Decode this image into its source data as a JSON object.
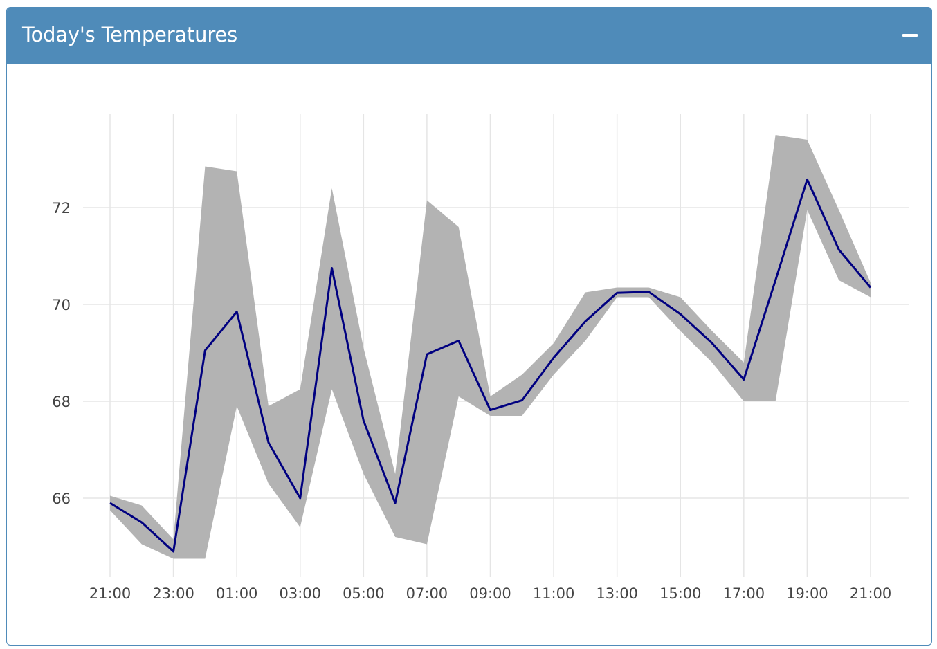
{
  "panel": {
    "title": "Today's Temperatures",
    "collapse_icon": "minus-icon",
    "header_color": "#4f8bb9"
  },
  "chart_data": {
    "type": "area",
    "title": "",
    "xlabel": "",
    "ylabel": "",
    "x_tick_labels": [
      "21:00",
      "23:00",
      "01:00",
      "03:00",
      "05:00",
      "07:00",
      "09:00",
      "11:00",
      "13:00",
      "15:00",
      "17:00",
      "19:00",
      "21:00"
    ],
    "y_ticks": [
      66,
      68,
      70,
      72
    ],
    "xlim": [
      0,
      24
    ],
    "ylim": [
      64.3,
      74.2
    ],
    "grid": true,
    "legend": "none",
    "colors": {
      "line": "#000080",
      "band": "#b3b3b3",
      "grid": "#e5e5e5"
    },
    "series": [
      {
        "type": "line",
        "x": [
          0,
          1,
          2,
          3,
          4,
          5,
          6,
          7,
          8,
          9,
          10,
          11,
          12,
          13,
          14,
          15,
          16,
          17,
          18,
          19,
          20,
          21,
          22,
          23,
          24
        ],
        "values": [
          65.9,
          65.5,
          64.9,
          69.05,
          69.85,
          67.15,
          66.0,
          70.75,
          67.6,
          65.9,
          68.97,
          69.25,
          67.82,
          68.02,
          68.9,
          69.65,
          70.24,
          70.26,
          69.8,
          69.2,
          68.45,
          70.5,
          72.58,
          71.13,
          70.35
        ]
      },
      {
        "type": "band",
        "x": [
          0,
          1,
          2,
          3,
          4,
          5,
          6,
          7,
          8,
          9,
          10,
          11,
          12,
          13,
          14,
          15,
          16,
          17,
          18,
          19,
          20,
          21,
          22,
          23,
          24
        ],
        "upper": [
          66.05,
          65.85,
          65.15,
          72.85,
          72.75,
          67.9,
          68.25,
          72.4,
          69.1,
          66.5,
          72.15,
          71.6,
          68.1,
          68.55,
          69.2,
          70.25,
          70.35,
          70.35,
          70.15,
          69.45,
          68.8,
          73.5,
          73.4,
          71.95,
          70.45
        ],
        "lower": [
          65.75,
          65.05,
          64.75,
          64.75,
          67.9,
          66.3,
          65.4,
          68.25,
          66.5,
          65.2,
          65.05,
          68.1,
          67.7,
          67.7,
          68.55,
          69.25,
          70.15,
          70.15,
          69.45,
          68.8,
          68.0,
          68.0,
          71.95,
          70.5,
          70.15
        ]
      }
    ]
  }
}
